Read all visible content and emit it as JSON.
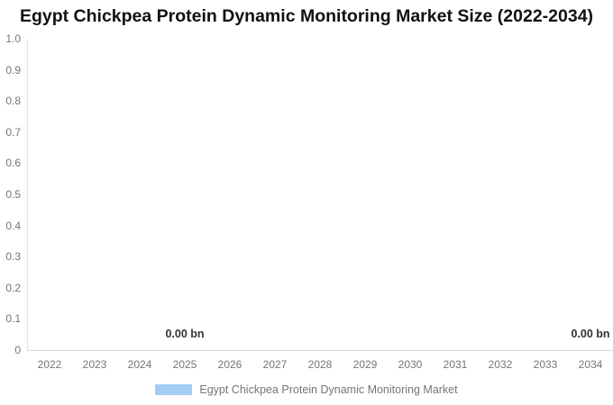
{
  "title": "Egypt Chickpea Protein Dynamic Monitoring Market Size (2022-2034)",
  "chart_data": {
    "type": "bar",
    "title": "Egypt Chickpea Protein Dynamic Monitoring Market Size (2022-2034)",
    "categories": [
      "2022",
      "2023",
      "2024",
      "2025",
      "2026",
      "2027",
      "2028",
      "2029",
      "2030",
      "2031",
      "2032",
      "2033",
      "2034"
    ],
    "series": [
      {
        "name": "Egypt Chickpea Protein Dynamic Monitoring Market",
        "values": [
          0,
          0,
          0,
          0,
          0,
          0,
          0,
          0,
          0,
          0,
          0,
          0,
          0
        ],
        "color": "#a4ccf5"
      }
    ],
    "data_labels": [
      {
        "category_index": 3,
        "category": "2025",
        "text": "0.00 bn"
      },
      {
        "category_index": 12,
        "category": "2034",
        "text": "0.00 bn"
      }
    ],
    "xlabel": "",
    "ylabel": "",
    "ylim": [
      0,
      1
    ],
    "yticks": [
      "1.0",
      "0.9",
      "0.8",
      "0.7",
      "0.6",
      "0.5",
      "0.4",
      "0.3",
      "0.2",
      "0.1",
      "0"
    ],
    "grid": false,
    "legend_position": "bottom",
    "unit": "bn"
  },
  "legend": {
    "items": [
      {
        "label": "Egypt Chickpea Protein Dynamic Monitoring Market",
        "swatch_color": "#a4ccf5"
      }
    ]
  },
  "colors": {
    "background": "#ffffff",
    "title": "#111111",
    "axis_label": "#757575",
    "data_label": "#333333",
    "y_axis_line": "#e3e3e3",
    "x_axis_line": "#d8d8d8",
    "series": "#a4ccf5",
    "legend_label": "#757575"
  }
}
